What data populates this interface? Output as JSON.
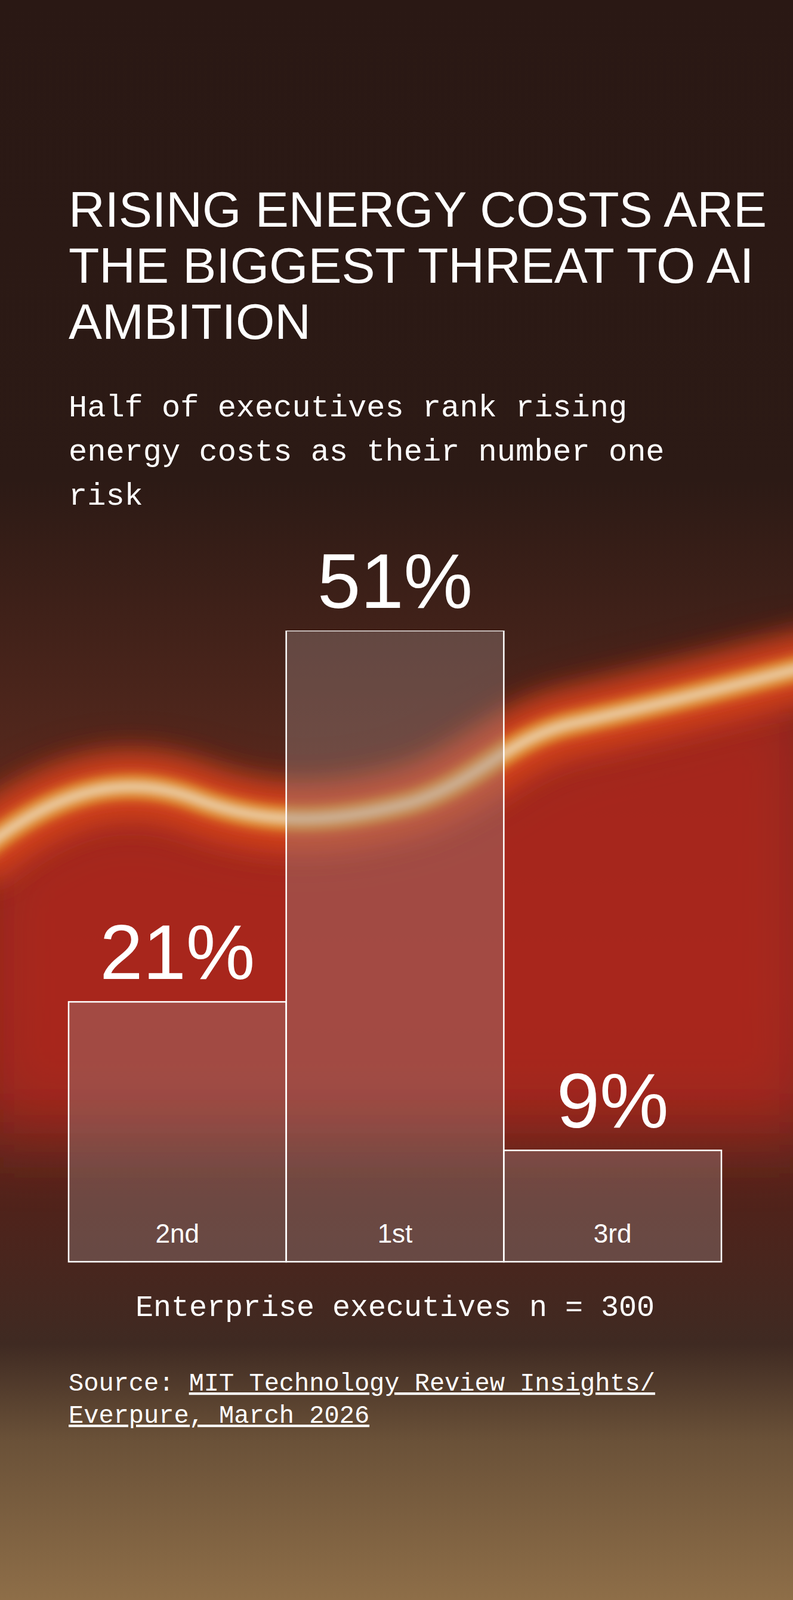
{
  "chart_data": {
    "type": "bar",
    "title": "RISING ENERGY COSTS ARE THE BIGGEST THREAT TO AI AMBITION",
    "subtitle": "Half of executives rank rising energy costs as their number one risk",
    "categories": [
      "2nd",
      "1st",
      "3rd"
    ],
    "values": [
      21,
      51,
      9
    ],
    "value_labels": [
      "21%",
      "51%",
      "9%"
    ],
    "ylim": [
      0,
      51
    ],
    "data_labels": true,
    "tick_labels": "x",
    "note": "Enterprise executives n = 300",
    "source": {
      "label": "Source:",
      "lines": [
        "MIT Technology Review Insights/",
        "Everpure, March 2026"
      ]
    }
  }
}
